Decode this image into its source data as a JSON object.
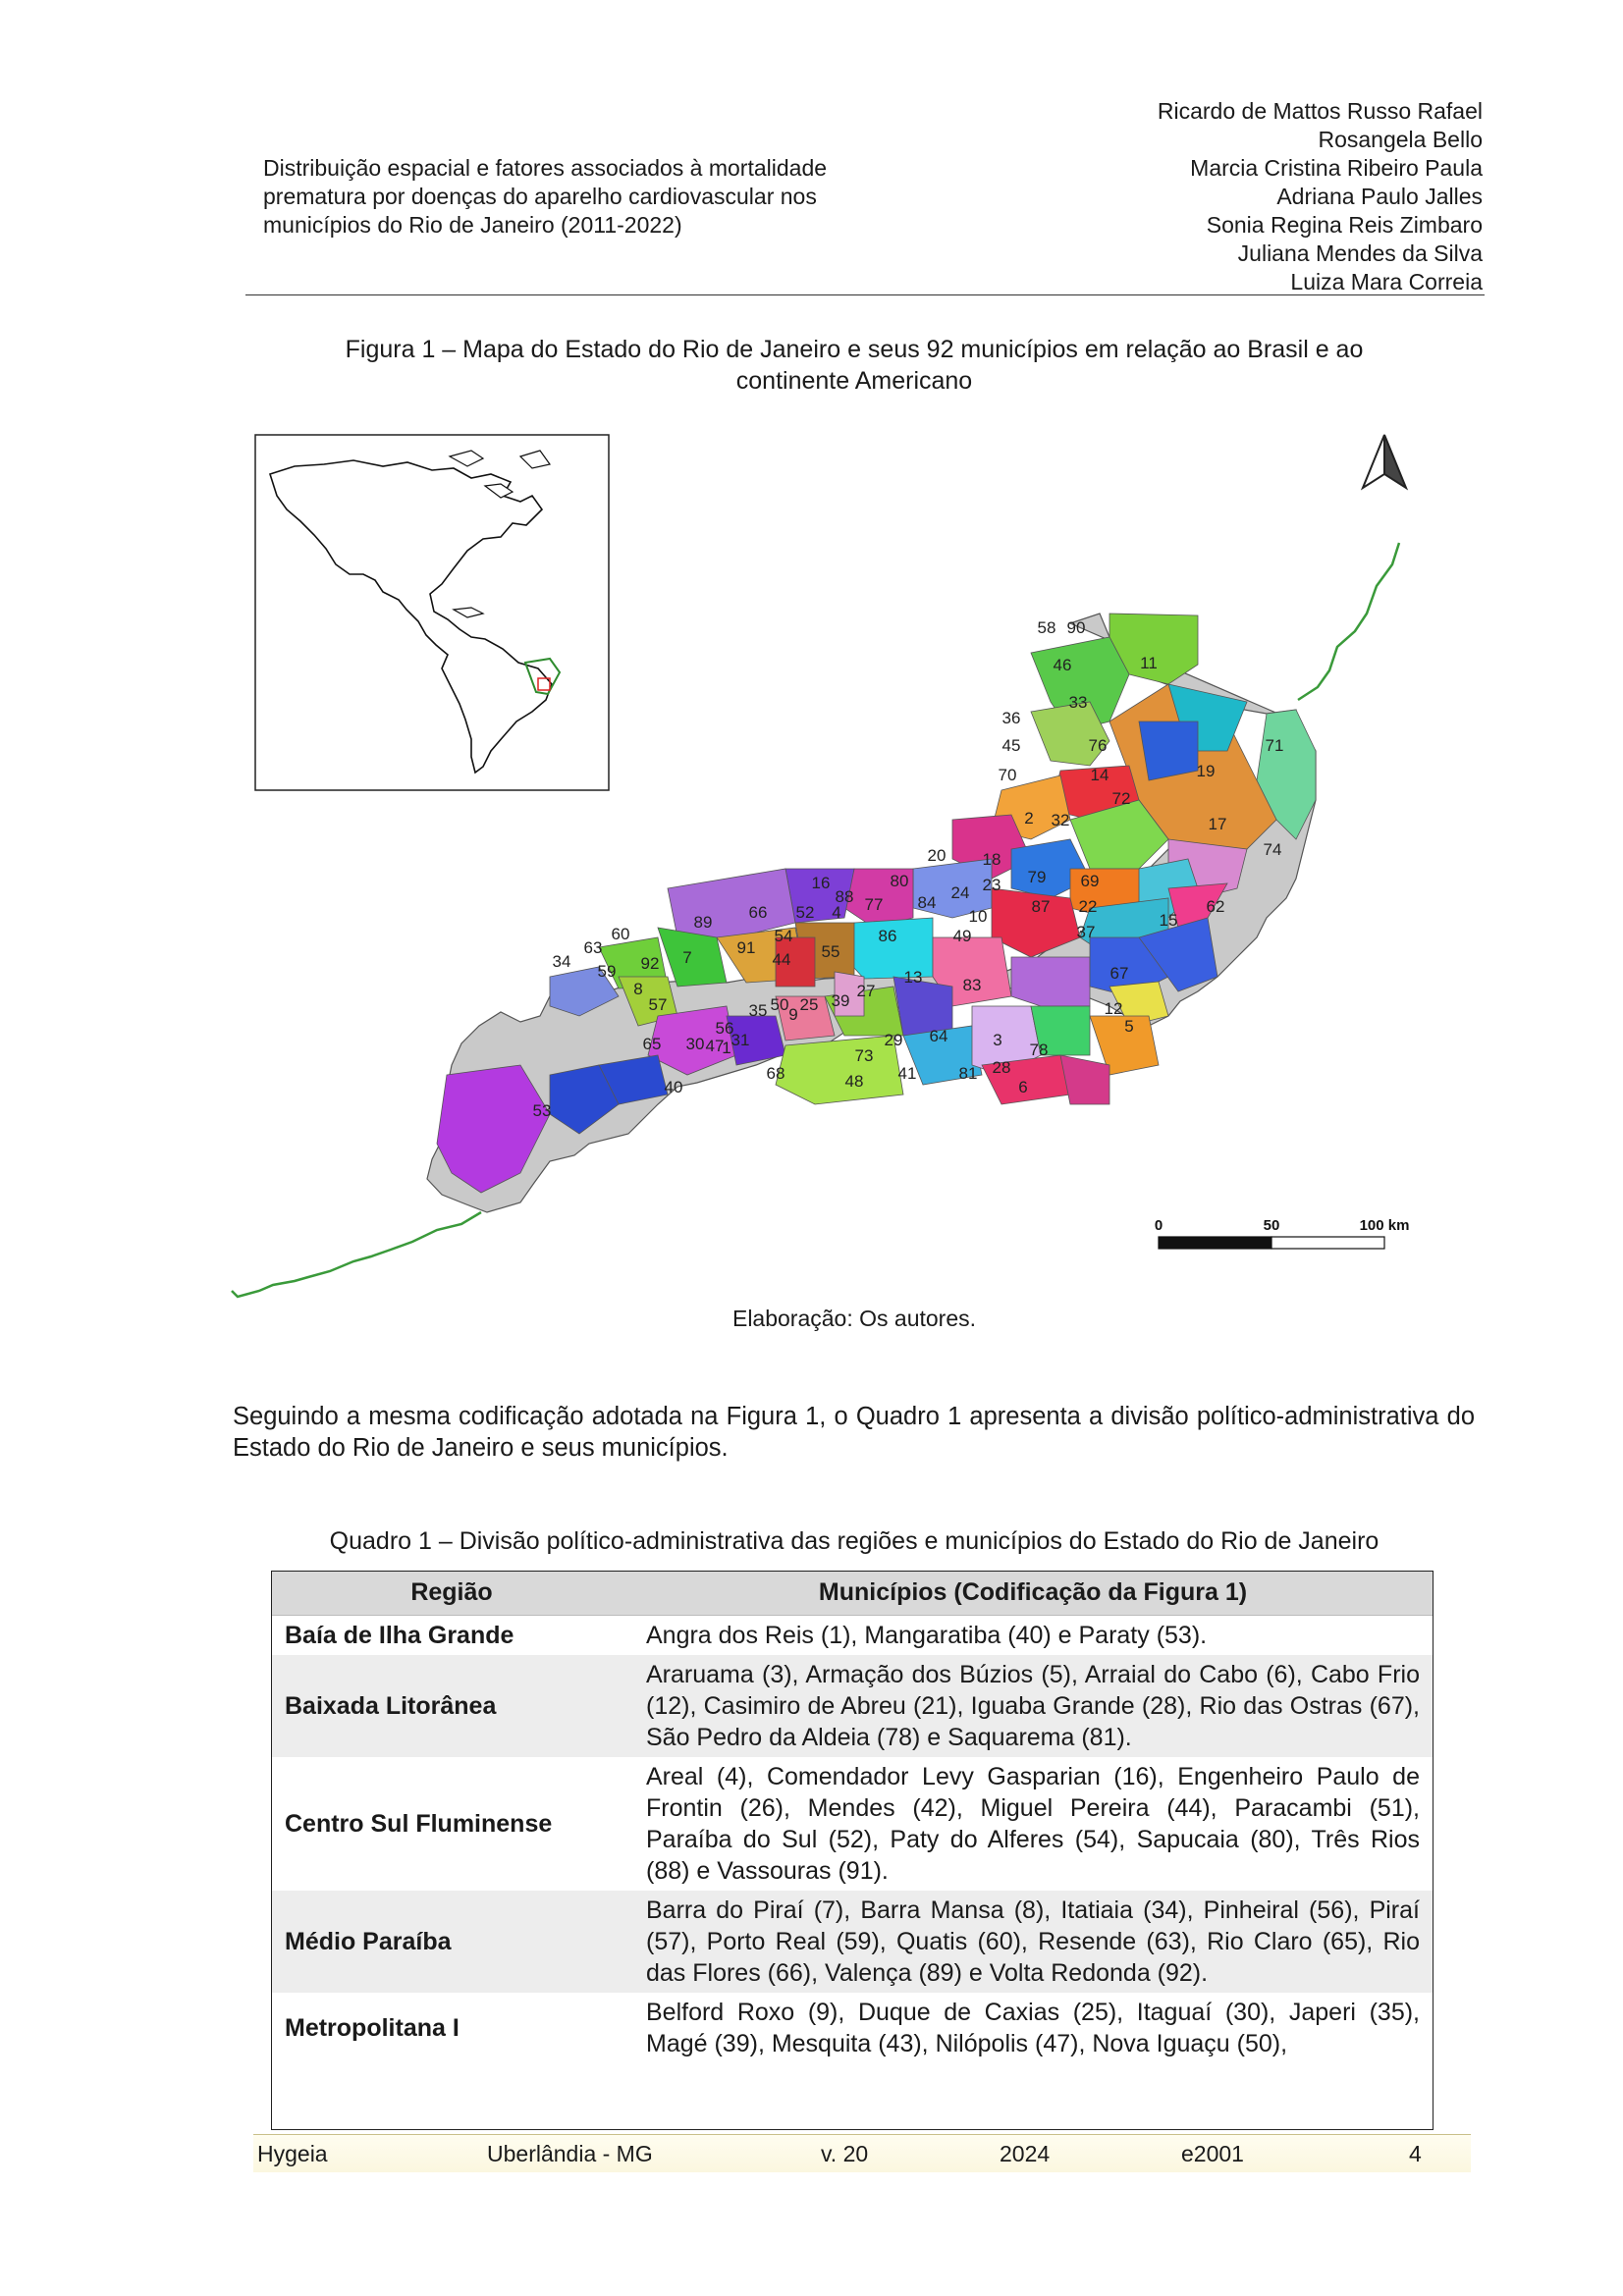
{
  "header": {
    "title_lines": [
      "Distribuição espacial e fatores associados à mortalidade",
      "prematura por doenças do aparelho cardiovascular nos",
      "municípios do Rio de Janeiro (2011-2022)"
    ],
    "authors": [
      "Ricardo de Mattos Russo Rafael",
      "Rosangela Bello",
      "Marcia Cristina Ribeiro Paula",
      "Adriana Paulo Jalles",
      "Sonia Regina Reis Zimbaro",
      "Juliana Mendes da Silva",
      "Luiza Mara Correia"
    ]
  },
  "figure": {
    "caption_lines": [
      "Figura 1 – Mapa do Estado do Rio de Janeiro e seus 92 municípios em relação ao Brasil e ao",
      "continente Americano"
    ],
    "scale_labels": [
      "0",
      "50",
      "100 km"
    ],
    "source": "Elaboração: Os autores.",
    "municipality_labels": [
      {
        "n": "58",
        "c": "#8bd63e"
      },
      {
        "n": "90",
        "c": "#a6e22e"
      },
      {
        "n": "46",
        "c": "#7bcf3a"
      },
      {
        "n": "11",
        "c": "#4fc21a"
      },
      {
        "n": "33",
        "c": "#59c94a"
      },
      {
        "n": "36",
        "c": "#6e62d8"
      },
      {
        "n": "45",
        "c": "#4b55d0"
      },
      {
        "n": "76",
        "c": "#b5e040"
      },
      {
        "n": "70",
        "c": "#9ed05a"
      },
      {
        "n": "14",
        "c": "#2aa85c"
      },
      {
        "n": "19",
        "c": "#1fb8c9"
      },
      {
        "n": "71",
        "c": "#6fd59d"
      },
      {
        "n": "72",
        "c": "#2d5fd9"
      },
      {
        "n": "2",
        "c": "#e8323c"
      },
      {
        "n": "32",
        "c": "#f0562b"
      },
      {
        "n": "17",
        "c": "#e0913a"
      },
      {
        "n": "74",
        "c": "#36cce0"
      },
      {
        "n": "20",
        "c": "#a05ae0"
      },
      {
        "n": "18",
        "c": "#f2a33a"
      },
      {
        "n": "23",
        "c": "#e8c51e"
      },
      {
        "n": "79",
        "c": "#3fb04a"
      },
      {
        "n": "69",
        "c": "#7fd84e"
      },
      {
        "n": "80",
        "c": "#d9338c"
      },
      {
        "n": "24",
        "c": "#b44ad8"
      },
      {
        "n": "84",
        "c": "#c35ec9"
      },
      {
        "n": "22",
        "c": "#4ac3d9"
      },
      {
        "n": "62",
        "c": "#d78ad0"
      },
      {
        "n": "16",
        "c": "#d8d12e"
      },
      {
        "n": "88",
        "c": "#b3cf2e"
      },
      {
        "n": "77",
        "c": "#ef6c2d"
      },
      {
        "n": "10",
        "c": "#2f78e0"
      },
      {
        "n": "87",
        "c": "#f07a20"
      },
      {
        "n": "15",
        "c": "#ef3d8d"
      },
      {
        "n": "66",
        "c": "#7d3fd6"
      },
      {
        "n": "52",
        "c": "#d23ba5"
      },
      {
        "n": "4",
        "c": "#c9b030"
      },
      {
        "n": "86",
        "c": "#7c92e8"
      },
      {
        "n": "49",
        "c": "#e52a4a"
      },
      {
        "n": "37",
        "c": "#36b8d0"
      },
      {
        "n": "89",
        "c": "#a86bd8"
      },
      {
        "n": "91",
        "c": "#dca33a"
      },
      {
        "n": "54",
        "c": "#b37a2e"
      },
      {
        "n": "44",
        "c": "#d66a2a"
      },
      {
        "n": "55",
        "c": "#28d6e6"
      },
      {
        "n": "63",
        "c": "#6fcf3a"
      },
      {
        "n": "60",
        "c": "#9ee04a"
      },
      {
        "n": "34",
        "c": "#7b8ce0"
      },
      {
        "n": "59",
        "c": "#d6303a"
      },
      {
        "n": "92",
        "c": "#4a8be0"
      },
      {
        "n": "7",
        "c": "#3ec43a"
      },
      {
        "n": "8",
        "c": "#a3cf3a"
      },
      {
        "n": "13",
        "c": "#f06fa3"
      },
      {
        "n": "83",
        "c": "#b06ad8"
      },
      {
        "n": "67",
        "c": "#3a5fe0"
      },
      {
        "n": "27",
        "c": "#5b4ad0"
      },
      {
        "n": "39",
        "c": "#8acd3a"
      },
      {
        "n": "57",
        "c": "#33b84a"
      },
      {
        "n": "50",
        "c": "#e0a0d0"
      },
      {
        "n": "9",
        "c": "#6aa0e0"
      },
      {
        "n": "25",
        "c": "#ea7b9a"
      },
      {
        "n": "65",
        "c": "#c84ad8"
      },
      {
        "n": "30",
        "c": "#d9c53a"
      },
      {
        "n": "12",
        "c": "#e8e04a"
      },
      {
        "n": "5",
        "c": "#38c8d8"
      },
      {
        "n": "73",
        "c": "#3ab0e0"
      },
      {
        "n": "29",
        "c": "#d9b4f0"
      },
      {
        "n": "64",
        "c": "#3fd06a"
      },
      {
        "n": "3",
        "c": "#3a5fe0"
      },
      {
        "n": "78",
        "c": "#f09a2a"
      },
      {
        "n": "68",
        "c": "#a7e24a"
      },
      {
        "n": "48",
        "c": "#e6e04a"
      },
      {
        "n": "41",
        "c": "#e8336a"
      },
      {
        "n": "81",
        "c": "#d43a8a"
      },
      {
        "n": "28",
        "c": "#e84a9a"
      },
      {
        "n": "6",
        "c": "#45d0e0"
      },
      {
        "n": "40",
        "c": "#2a4ad0"
      },
      {
        "n": "53",
        "c": "#b33ae0"
      },
      {
        "n": "1",
        "c": "#d63ad8"
      },
      {
        "n": "47",
        "c": "#2ac0a0"
      },
      {
        "n": "56",
        "c": "#dd2a7a"
      },
      {
        "n": "35",
        "c": "#e05ab0"
      },
      {
        "n": "31",
        "c": "#6a2ad0"
      }
    ]
  },
  "body": {
    "paragraph": "Seguindo a mesma codificação adotada na Figura 1, o Quadro 1 apresenta a divisão político-administrativa do Estado do Rio de Janeiro e seus municípios."
  },
  "quadro": {
    "caption": "Quadro 1 – Divisão político-administrativa das regiões e municípios do Estado do Rio de Janeiro",
    "headers": [
      "Região",
      "Municípios (Codificação da Figura 1)"
    ],
    "rows": [
      {
        "region": "Baía de Ilha Grande",
        "municipalities": "Angra dos Reis (1), Mangaratiba (40) e Paraty (53)."
      },
      {
        "region": "Baixada Litorânea",
        "municipalities": "Araruama (3), Armação dos Búzios (5), Arraial do Cabo (6), Cabo Frio (12), Casimiro de Abreu (21), Iguaba Grande (28), Rio das Ostras (67), São Pedro da Aldeia (78) e Saquarema (81)."
      },
      {
        "region": "Centro Sul Fluminense",
        "municipalities": "Areal (4), Comendador Levy Gasparian (16), Engenheiro Paulo de Frontin (26), Mendes (42), Miguel Pereira (44), Paracambi (51), Paraíba do Sul (52), Paty do Alferes (54), Sapucaia (80), Três Rios (88) e Vassouras (91)."
      },
      {
        "region": "Médio Paraíba",
        "municipalities": "Barra do Piraí (7), Barra Mansa (8), Itatiaia (34), Pinheiral (56), Piraí (57), Porto Real (59), Quatis (60), Resende (63), Rio Claro (65), Rio das Flores (66), Valença (89) e Volta Redonda (92)."
      },
      {
        "region": "Metropolitana I",
        "municipalities": "Belford Roxo (9), Duque de Caxias (25), Itaguaí (30), Japeri (35), Magé (39), Mesquita (43), Nilópolis (47), Nova Iguaçu (50),"
      }
    ]
  },
  "footer": {
    "journal": "Hygeia",
    "city": "Uberlândia - MG",
    "volume": "v. 20",
    "year": "2024",
    "article": "e2001",
    "page": "4"
  }
}
